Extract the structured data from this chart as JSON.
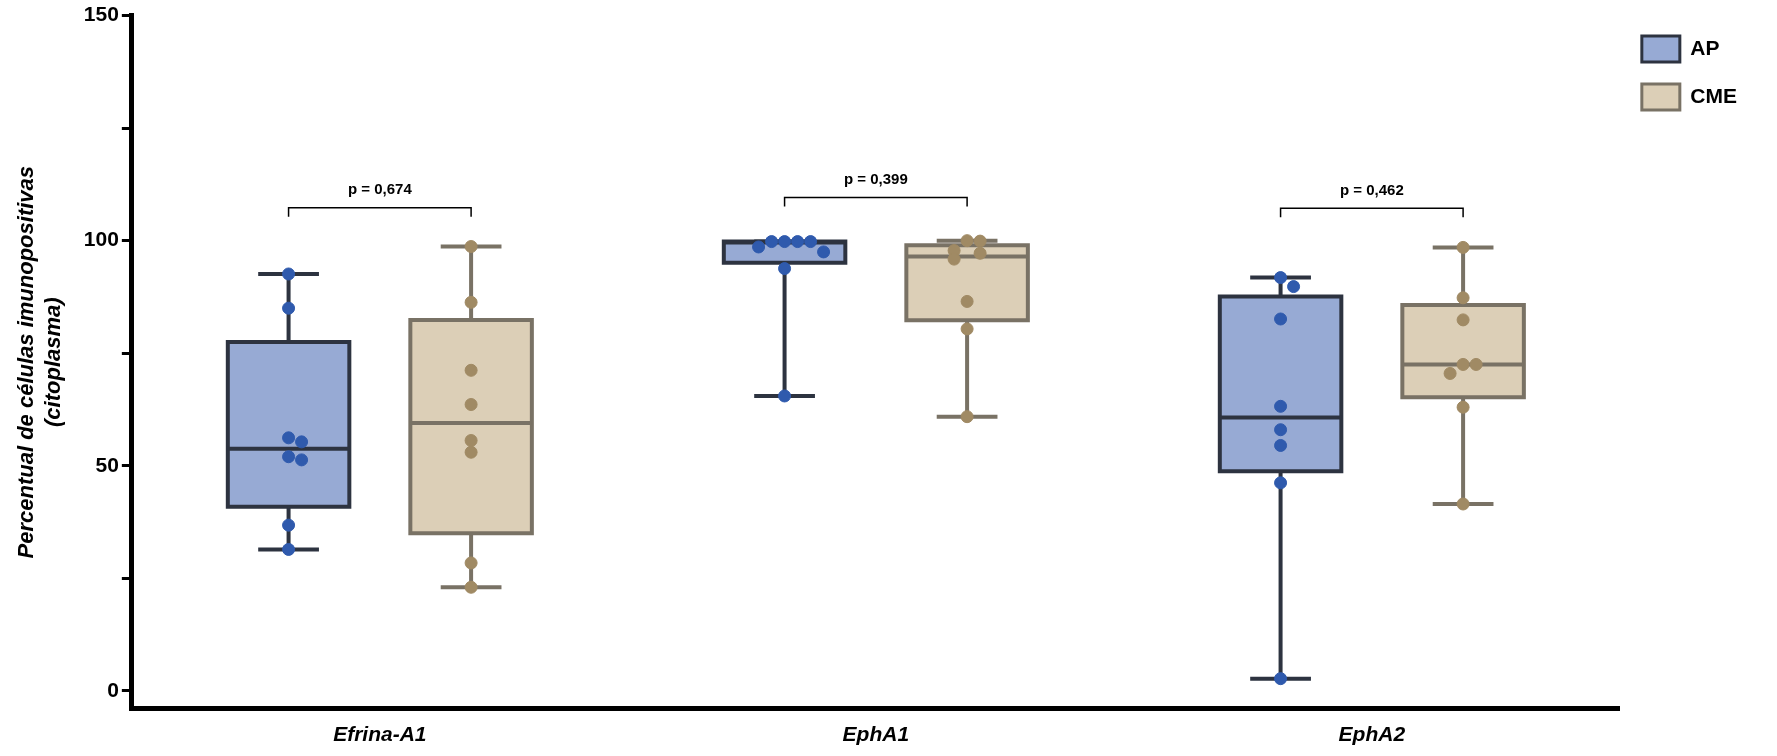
{
  "chart_data": {
    "type": "box",
    "categories": [
      "Efrina-A1",
      "EphA1",
      "EphA2"
    ],
    "ylabel": "Percentual de células imunopositivas\n(citoplasma)",
    "ylim": [
      -4,
      150
    ],
    "yticks": [
      0,
      {
        "value": 25,
        "label": null
      },
      50,
      {
        "value": 75,
        "label": null
      },
      100,
      {
        "value": 125,
        "label": null
      },
      150
    ],
    "grid": false,
    "legend": "top right",
    "series": [
      {
        "name": "AP",
        "color": "#97aad4",
        "boxes": [
          {
            "low": 31.4,
            "q1": 40.9,
            "median": 53.8,
            "q3": 77.5,
            "high": 92.6
          },
          {
            "low": 65.5,
            "q1": 95.1,
            "median": 99.6,
            "q3": 99.8,
            "high": 99.8
          },
          {
            "low": 2.7,
            "q1": 48.8,
            "median": 60.7,
            "q3": 87.6,
            "high": 91.8
          }
        ]
      },
      {
        "name": "CME",
        "color": "#dccfb7",
        "boxes": [
          {
            "low": 23,
            "q1": 35,
            "median": 59.5,
            "q3": 82.4,
            "high": 98.7
          },
          {
            "low": 60.9,
            "q1": 82.3,
            "median": 96.5,
            "q3": 99,
            "high": 100
          },
          {
            "low": 41.5,
            "q1": 65.2,
            "median": 72.5,
            "q3": 85.7,
            "high": 98.5
          }
        ]
      },
      {
        "type": "scatter",
        "color": "#2f5aad",
        "x": [
          "Efrina-A1",
          "Efrina-A1",
          "Efrina-A1",
          "Efrina-A1",
          "Efrina-A1",
          "Efrina-A1",
          "Efrina-A1",
          "Efrina-A1",
          "EphA1",
          "EphA1",
          "EphA1",
          "EphA1",
          "EphA1",
          "EphA1",
          "EphA1",
          "EphA1",
          "EphA2",
          "EphA2",
          "EphA2",
          "EphA2",
          "EphA2",
          "EphA2",
          "EphA2",
          "EphA2"
        ],
        "values": [
          92.6,
          85,
          56.2,
          55.3,
          52,
          51.3,
          36.8,
          31.4,
          99.8,
          99.8,
          99.8,
          99.8,
          98.6,
          97.5,
          93.8,
          65.5,
          91.8,
          89.8,
          82.6,
          63.2,
          58,
          54.5,
          46.2,
          2.7
        ]
      },
      {
        "type": "scatter",
        "color": "#a08a64",
        "x": [
          "Efrina-A1",
          "Efrina-A1",
          "Efrina-A1",
          "Efrina-A1",
          "Efrina-A1",
          "Efrina-A1",
          "Efrina-A1",
          "Efrina-A1",
          "EphA1",
          "EphA1",
          "EphA1",
          "EphA1",
          "EphA1",
          "EphA1",
          "EphA1",
          "EphA1",
          "EphA2",
          "EphA2",
          "EphA2",
          "EphA2",
          "EphA2",
          "EphA2",
          "EphA2",
          "EphA2"
        ],
        "values": [
          98.7,
          86.3,
          71.2,
          63.6,
          55.6,
          53,
          28.4,
          23,
          100,
          99.9,
          97.8,
          97.2,
          95.9,
          86.5,
          80.4,
          60.9,
          98.5,
          87.3,
          82.4,
          72.5,
          72.5,
          70.5,
          63,
          41.5
        ]
      }
    ],
    "annotations": [
      "p = 0,674",
      "p = 0,399",
      "p = 0,462"
    ]
  }
}
